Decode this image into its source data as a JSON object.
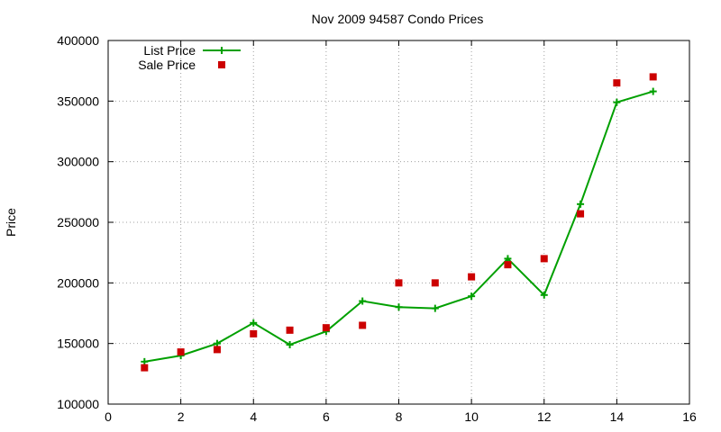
{
  "chart_data": {
    "type": "line",
    "title": "Nov 2009 94587 Condo Prices",
    "xlabel": "",
    "ylabel": "Price",
    "xlim": [
      0,
      16
    ],
    "ylim": [
      100000,
      400000
    ],
    "xticks": [
      0,
      2,
      4,
      6,
      8,
      10,
      12,
      14,
      16
    ],
    "yticks": [
      100000,
      150000,
      200000,
      250000,
      300000,
      350000,
      400000
    ],
    "grid": true,
    "legend_position": "top-left",
    "series": [
      {
        "name": "List Price",
        "style": "line+cross",
        "color": "#00a000",
        "x": [
          1,
          2,
          3,
          4,
          5,
          6,
          7,
          8,
          9,
          10,
          11,
          12,
          13,
          14,
          15
        ],
        "y": [
          135000,
          140000,
          150000,
          167000,
          149000,
          160000,
          185000,
          180000,
          179000,
          189000,
          220000,
          190000,
          265000,
          349000,
          358000
        ]
      },
      {
        "name": "Sale Price",
        "style": "square",
        "color": "#cc0000",
        "x": [
          1,
          2,
          3,
          4,
          5,
          6,
          7,
          8,
          9,
          10,
          11,
          12,
          13,
          14,
          15
        ],
        "y": [
          130000,
          143000,
          145000,
          158000,
          161000,
          163000,
          165000,
          200000,
          200000,
          205000,
          215000,
          220000,
          257000,
          365000,
          370000
        ]
      }
    ]
  }
}
